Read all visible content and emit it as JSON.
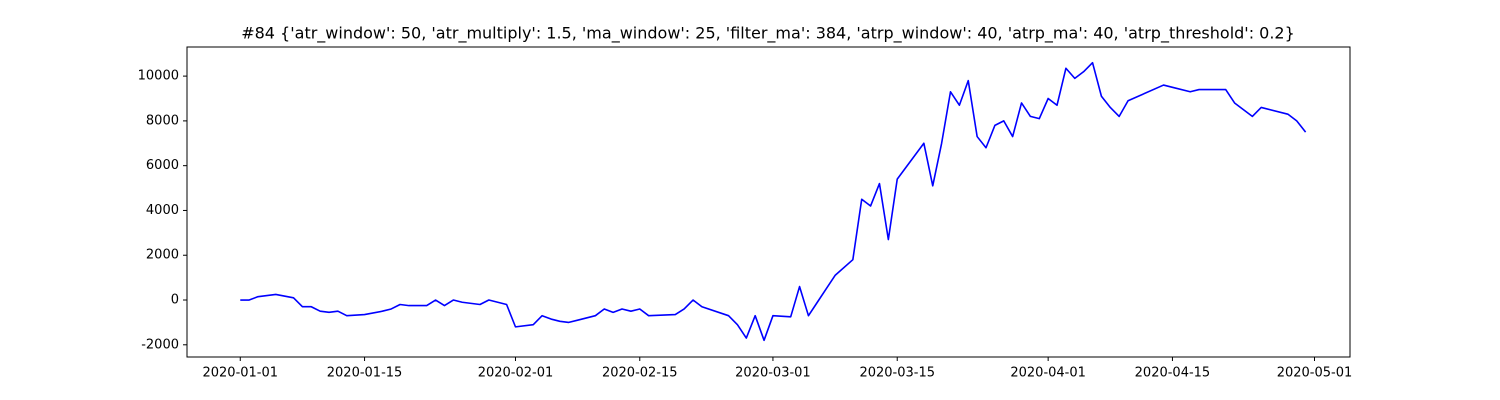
{
  "chart_data": {
    "type": "line",
    "title": "#84 {'atr_window': 50, 'atr_multiply': 1.5, 'ma_window': 25, 'filter_ma': 384, 'atrp_window': 40, 'atrp_ma': 40, 'atrp_threshold': 0.2}",
    "x": [
      "2020-01-01",
      "2020-01-02",
      "2020-01-03",
      "2020-01-04",
      "2020-01-05",
      "2020-01-07",
      "2020-01-08",
      "2020-01-09",
      "2020-01-10",
      "2020-01-11",
      "2020-01-12",
      "2020-01-13",
      "2020-01-15",
      "2020-01-17",
      "2020-01-18",
      "2020-01-19",
      "2020-01-20",
      "2020-01-22",
      "2020-01-23",
      "2020-01-24",
      "2020-01-25",
      "2020-01-26",
      "2020-01-28",
      "2020-01-29",
      "2020-01-30",
      "2020-01-31",
      "2020-02-01",
      "2020-02-03",
      "2020-02-04",
      "2020-02-05",
      "2020-02-06",
      "2020-02-07",
      "2020-02-08",
      "2020-02-10",
      "2020-02-11",
      "2020-02-12",
      "2020-02-13",
      "2020-02-14",
      "2020-02-15",
      "2020-02-16",
      "2020-02-19",
      "2020-02-20",
      "2020-02-21",
      "2020-02-22",
      "2020-02-25",
      "2020-02-26",
      "2020-02-27",
      "2020-02-28",
      "2020-02-29",
      "2020-03-01",
      "2020-03-03",
      "2020-03-04",
      "2020-03-05",
      "2020-03-06",
      "2020-03-07",
      "2020-03-08",
      "2020-03-10",
      "2020-03-11",
      "2020-03-12",
      "2020-03-13",
      "2020-03-14",
      "2020-03-15",
      "2020-03-18",
      "2020-03-19",
      "2020-03-20",
      "2020-03-21",
      "2020-03-22",
      "2020-03-23",
      "2020-03-24",
      "2020-03-25",
      "2020-03-26",
      "2020-03-27",
      "2020-03-28",
      "2020-03-29",
      "2020-03-30",
      "2020-03-31",
      "2020-04-01",
      "2020-04-02",
      "2020-04-03",
      "2020-04-04",
      "2020-04-05",
      "2020-04-06",
      "2020-04-07",
      "2020-04-08",
      "2020-04-09",
      "2020-04-10",
      "2020-04-14",
      "2020-04-15",
      "2020-04-17",
      "2020-04-18",
      "2020-04-21",
      "2020-04-22",
      "2020-04-24",
      "2020-04-25",
      "2020-04-28",
      "2020-04-29",
      "2020-04-30"
    ],
    "series": [
      {
        "color": "#0000ff",
        "values": [
          0,
          0,
          150,
          200,
          250,
          100,
          -300,
          -300,
          -500,
          -550,
          -500,
          -700,
          -650,
          -500,
          -400,
          -200,
          -250,
          -250,
          0,
          -250,
          0,
          -100,
          -200,
          0,
          -100,
          -200,
          -1200,
          -1100,
          -700,
          -850,
          -950,
          -1000,
          -900,
          -700,
          -400,
          -550,
          -400,
          -500,
          -400,
          -700,
          -650,
          -400,
          0,
          -300,
          -700,
          -1100,
          -1700,
          -700,
          -1800,
          -700,
          -750,
          600,
          -700,
          -100,
          500,
          1100,
          1800,
          4500,
          4200,
          5200,
          2700,
          5400,
          7000,
          5100,
          7000,
          9300,
          8700,
          9800,
          7300,
          6800,
          7800,
          8000,
          7300,
          8800,
          8200,
          8100,
          9000,
          8700,
          10350,
          9900,
          10200,
          10600,
          9100,
          8600,
          8200,
          8900,
          9600,
          9500,
          9300,
          9400,
          9400,
          8800,
          8200,
          8600,
          8300,
          8000,
          7500
        ]
      }
    ],
    "xlim": [
      "2019-12-26",
      "2020-05-05"
    ],
    "xticks": [
      "2020-01-01",
      "2020-01-15",
      "2020-02-01",
      "2020-02-15",
      "2020-03-01",
      "2020-03-15",
      "2020-04-01",
      "2020-04-15",
      "2020-05-01"
    ],
    "ylim": [
      -2545,
      11300
    ],
    "yticks": [
      -2000,
      0,
      2000,
      4000,
      6000,
      8000,
      10000
    ]
  }
}
